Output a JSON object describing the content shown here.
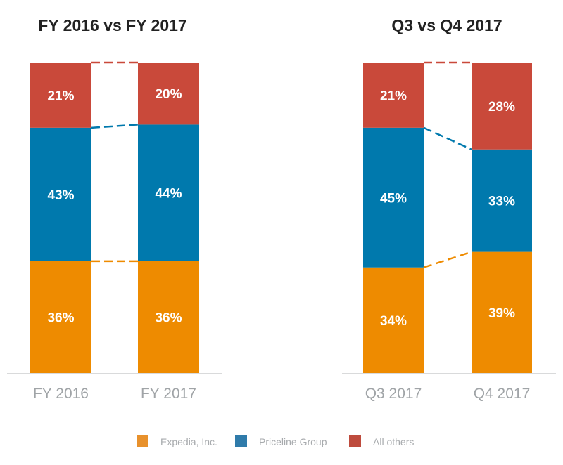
{
  "chart_data": [
    {
      "type": "bar",
      "stacked": true,
      "title": "FY 2016 vs FY 2017",
      "categories": [
        "FY 2016",
        "FY 2017"
      ],
      "series": [
        {
          "name": "Expedia, Inc.",
          "values": [
            36,
            36
          ],
          "labels": [
            "36%",
            "36%"
          ]
        },
        {
          "name": "Priceline Group",
          "values": [
            43,
            44
          ],
          "labels": [
            "43%",
            "44%"
          ]
        },
        {
          "name": "All others",
          "values": [
            21,
            20
          ],
          "labels": [
            "21%",
            "20%"
          ]
        }
      ],
      "ylim": [
        0,
        100
      ],
      "grid": false
    },
    {
      "type": "bar",
      "stacked": true,
      "title": "Q3 vs Q4 2017",
      "categories": [
        "Q3 2017",
        "Q4 2017"
      ],
      "series": [
        {
          "name": "Expedia, Inc.",
          "values": [
            34,
            39
          ],
          "labels": [
            "34%",
            "39%"
          ]
        },
        {
          "name": "Priceline Group",
          "values": [
            45,
            33
          ],
          "labels": [
            "45%",
            "33%"
          ]
        },
        {
          "name": "All others",
          "values": [
            21,
            28
          ],
          "labels": [
            "21%",
            "28%"
          ]
        }
      ],
      "ylim": [
        0,
        100
      ],
      "grid": false
    }
  ],
  "legend": {
    "placement": "bottom",
    "items": [
      {
        "label": "Expedia, Inc.",
        "color": "#E8912C"
      },
      {
        "label": "Priceline Group",
        "color": "#2F7BAA"
      },
      {
        "label": "All others",
        "color": "#BE4B3D"
      }
    ]
  },
  "colors": {
    "series": [
      "#EE8B00",
      "#0079AD",
      "#C9493A"
    ],
    "axis_label": "#A0A4A7",
    "title": "#222222"
  }
}
